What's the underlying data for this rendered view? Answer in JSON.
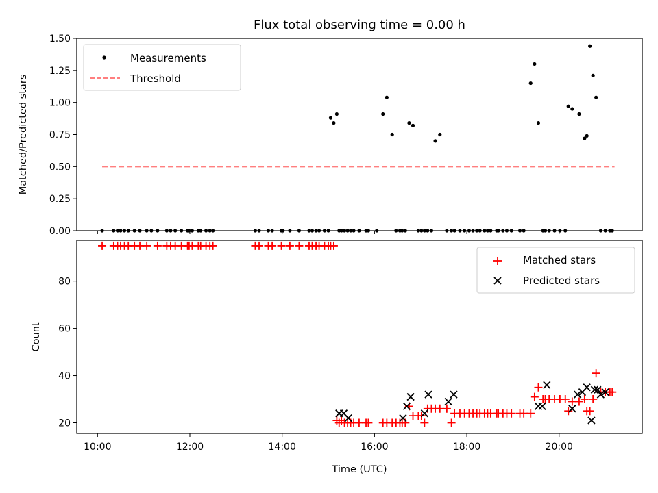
{
  "chart_data": [
    {
      "type": "scatter",
      "title": "Flux total observing time = 0.00 h",
      "xlabel": "",
      "ylabel": "Matched/Predicted stars",
      "ylim": [
        0,
        1.5
      ],
      "xlim_hours": [
        9.55,
        21.8
      ],
      "yticks": [
        0,
        0.25,
        0.5,
        0.75,
        1.0,
        1.25,
        1.5
      ],
      "ytick_labels": [
        "0.00",
        "0.25",
        "0.50",
        "0.75",
        "1.00",
        "1.25",
        "1.50"
      ],
      "legend_position": "top-left",
      "series": [
        {
          "name": "Measurements",
          "color": "#000000",
          "marker": "dot",
          "x": [
            "10:06",
            "10:21",
            "10:26",
            "10:30",
            "10:35",
            "10:40",
            "10:48",
            "10:55",
            "11:04",
            "11:10",
            "11:18",
            "11:30",
            "11:35",
            "11:41",
            "11:49",
            "11:57",
            "11:59",
            "12:03",
            "12:11",
            "12:14",
            "12:21",
            "12:26",
            "12:30",
            "13:25",
            "13:30",
            "13:42",
            "13:47",
            "13:59",
            "14:01",
            "14:10",
            "14:22",
            "14:35",
            "14:39",
            "14:44",
            "14:48",
            "14:55",
            "15:00",
            "15:03",
            "15:07",
            "15:11",
            "15:14",
            "15:17",
            "15:21",
            "15:25",
            "15:29",
            "15:33",
            "15:40",
            "15:49",
            "15:52",
            "16:03",
            "16:11",
            "16:16",
            "16:23",
            "16:28",
            "16:33",
            "16:36",
            "16:40",
            "16:45",
            "16:50",
            "16:57",
            "17:01",
            "17:05",
            "17:09",
            "17:14",
            "17:19",
            "17:25",
            "17:34",
            "17:40",
            "17:44",
            "17:51",
            "17:57",
            "18:03",
            "18:08",
            "18:13",
            "18:17",
            "18:23",
            "18:27",
            "18:31",
            "18:39",
            "18:41",
            "18:47",
            "18:52",
            "18:58",
            "19:09",
            "19:14",
            "19:23",
            "19:28",
            "19:33",
            "19:39",
            "19:42",
            "19:47",
            "19:54",
            "20:01",
            "20:08",
            "20:12",
            "20:17",
            "20:26",
            "20:33",
            "20:36",
            "20:40",
            "20:44",
            "20:48",
            "20:54",
            "21:00",
            "21:06",
            "21:09"
          ],
          "y": [
            0,
            0,
            0,
            0,
            0,
            0,
            0,
            0,
            0,
            0,
            0,
            0,
            0,
            0,
            0,
            0,
            0,
            0,
            0,
            0,
            0,
            0,
            0,
            0,
            0,
            0,
            0,
            0,
            0,
            0,
            0,
            0,
            0,
            0,
            0,
            0,
            0,
            0.88,
            0.84,
            0.91,
            0,
            0,
            0,
            0,
            0,
            0,
            0,
            0,
            0,
            0,
            0.91,
            1.04,
            0.75,
            0,
            0,
            0,
            0,
            0.84,
            0.82,
            0,
            0,
            0,
            0,
            0,
            0.7,
            0.75,
            0,
            0,
            0,
            0,
            0,
            0,
            0,
            0,
            0,
            0,
            0,
            0,
            0,
            0,
            0,
            0,
            0,
            0,
            0,
            1.15,
            1.3,
            0.84,
            0,
            0,
            0,
            0,
            0,
            0,
            0.97,
            0.95,
            0.91,
            0.72,
            0.74,
            1.44,
            1.21,
            1.04,
            0,
            0,
            0,
            0
          ]
        },
        {
          "name": "Threshold",
          "color": "#ff7f7f",
          "style": "dashed",
          "x": [
            "10:06",
            "21:12"
          ],
          "y": [
            0.5,
            0.5
          ]
        }
      ]
    },
    {
      "type": "scatter",
      "title": "",
      "xlabel": "Time (UTC)",
      "ylabel": "Count",
      "ylim": [
        15.5,
        97.3
      ],
      "xlim_hours": [
        9.55,
        21.8
      ],
      "yticks": [
        20,
        40,
        60,
        80
      ],
      "xticks": [
        "10:00",
        "12:00",
        "14:00",
        "16:00",
        "18:00",
        "20:00"
      ],
      "legend_position": "top-right",
      "series": [
        {
          "name": "Matched stars",
          "color": "#ff0000",
          "marker": "plus",
          "x": [
            "10:06",
            "10:21",
            "10:26",
            "10:30",
            "10:35",
            "10:40",
            "10:48",
            "10:55",
            "11:04",
            "11:18",
            "11:30",
            "11:35",
            "11:41",
            "11:49",
            "11:57",
            "11:59",
            "12:03",
            "12:11",
            "12:14",
            "12:21",
            "12:26",
            "12:30",
            "13:25",
            "13:30",
            "13:42",
            "13:47",
            "13:59",
            "14:10",
            "14:22",
            "14:35",
            "14:39",
            "14:44",
            "14:48",
            "14:55",
            "15:00",
            "15:03",
            "15:07",
            "15:11",
            "15:14",
            "15:17",
            "15:21",
            "15:25",
            "15:29",
            "15:33",
            "15:40",
            "15:49",
            "15:52",
            "16:11",
            "16:16",
            "16:23",
            "16:28",
            "16:33",
            "16:36",
            "16:40",
            "16:45",
            "16:50",
            "16:57",
            "17:01",
            "17:05",
            "17:09",
            "17:14",
            "17:19",
            "17:25",
            "17:34",
            "17:40",
            "17:44",
            "17:51",
            "17:57",
            "18:03",
            "18:08",
            "18:13",
            "18:17",
            "18:23",
            "18:27",
            "18:31",
            "18:39",
            "18:41",
            "18:47",
            "18:52",
            "18:58",
            "19:09",
            "19:14",
            "19:23",
            "19:28",
            "19:33",
            "19:39",
            "19:42",
            "19:47",
            "19:54",
            "20:01",
            "20:08",
            "20:12",
            "20:17",
            "20:26",
            "20:33",
            "20:36",
            "20:40",
            "20:44",
            "20:48",
            "20:54",
            "21:00",
            "21:06",
            "21:09"
          ],
          "y": [
            95,
            95,
            95,
            95,
            95,
            95,
            95,
            95,
            95,
            95,
            95,
            95,
            95,
            95,
            95,
            95,
            95,
            95,
            95,
            95,
            95,
            95,
            95,
            95,
            95,
            95,
            95,
            95,
            95,
            95,
            95,
            95,
            95,
            95,
            95,
            95,
            95,
            21,
            20,
            21,
            20,
            20,
            20,
            20,
            20,
            20,
            20,
            20,
            20,
            20,
            20,
            20,
            20,
            20,
            27,
            23,
            23,
            23,
            20,
            26,
            26,
            26,
            26,
            26,
            20,
            24,
            24,
            24,
            24,
            24,
            24,
            24,
            24,
            24,
            24,
            24,
            24,
            24,
            24,
            24,
            24,
            24,
            24,
            31,
            35,
            30,
            30,
            30,
            30,
            30,
            30,
            25,
            29,
            29,
            30,
            25,
            25,
            30,
            41,
            33,
            33,
            33,
            33
          ]
        },
        {
          "name": "Predicted stars",
          "color": "#000000",
          "marker": "x",
          "x": [
            "15:14",
            "15:20",
            "15:26",
            "16:37",
            "16:42",
            "16:47",
            "17:05",
            "17:10",
            "17:36",
            "17:43",
            "19:33",
            "19:38",
            "19:44",
            "20:17",
            "20:24",
            "20:30",
            "20:36",
            "20:42",
            "20:46",
            "20:50",
            "20:54",
            "21:00"
          ],
          "y": [
            24,
            24,
            22,
            22,
            27,
            31,
            24,
            32,
            29,
            32,
            27,
            27,
            36,
            26,
            32,
            33,
            35,
            21,
            34,
            34,
            32,
            33
          ]
        }
      ]
    }
  ]
}
